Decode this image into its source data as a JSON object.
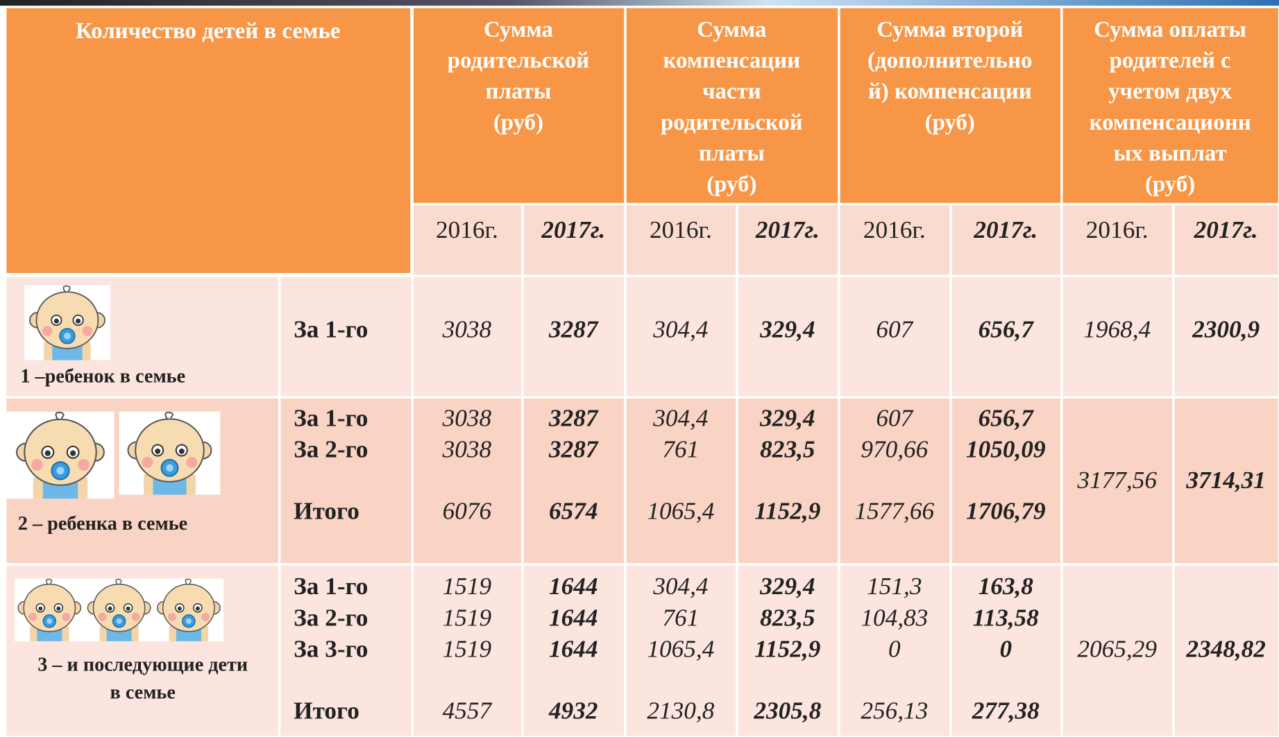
{
  "header": {
    "group_label": "Количество детей в семье",
    "columns": [
      {
        "title": "Сумма\nродительской\nплаты\n(руб)",
        "years": [
          "2016г.",
          "2017г."
        ]
      },
      {
        "title": "Сумма\nкомпенсации\nчасти\nродительской\nплаты\n(руб)",
        "years": [
          "2016г.",
          "2017г."
        ]
      },
      {
        "title": "Сумма второй\n(дополнительно\nй) компенсации\n(руб)",
        "years": [
          "2016г.",
          "2017г."
        ]
      },
      {
        "title": "Сумма оплаты\nродителей с\nучетом двух\nкомпенсационн\nых выплат\n(руб)",
        "years": [
          "2016г.",
          "2017г."
        ]
      }
    ]
  },
  "rows": [
    {
      "label": "1 –ребенок в семье",
      "lines": [
        {
          "label": "За 1-го",
          "values": [
            "3038",
            "3287",
            "304,4",
            "329,4",
            "607",
            "656,7"
          ]
        }
      ],
      "total": [
        "1968,4",
        "2300,9"
      ]
    },
    {
      "label": "2 – ребенка в семье",
      "lines": [
        {
          "label": "За 1-го",
          "values": [
            "3038",
            "3287",
            "304,4",
            "329,4",
            "607",
            "656,7"
          ]
        },
        {
          "label": "За 2-го",
          "values": [
            "3038",
            "3287",
            "761",
            "823,5",
            "970,66",
            "1050,09"
          ]
        },
        {
          "label": "Итого",
          "values": [
            "6076",
            "6574",
            "1065,4",
            "1152,9",
            "1577,66",
            "1706,79"
          ]
        }
      ],
      "total": [
        "3177,56",
        "3714,31"
      ]
    },
    {
      "label": "3 – и последующие дети\nв семье",
      "lines": [
        {
          "label": "За 1-го",
          "values": [
            "1519",
            "1644",
            "304,4",
            "329,4",
            "151,3",
            "163,8"
          ]
        },
        {
          "label": "За 2-го",
          "values": [
            "1519",
            "1644",
            "761",
            "823,5",
            "104,83",
            "113,58"
          ]
        },
        {
          "label": "За 3-го",
          "values": [
            "1519",
            "1644",
            "1065,4",
            "1152,9",
            "0",
            "0"
          ]
        },
        {
          "label": "Итого",
          "values": [
            "4557",
            "4932",
            "2130,8",
            "2305,8",
            "256,13",
            "277,38"
          ]
        }
      ],
      "total": [
        "2065,29",
        "2348,82"
      ]
    }
  ]
}
